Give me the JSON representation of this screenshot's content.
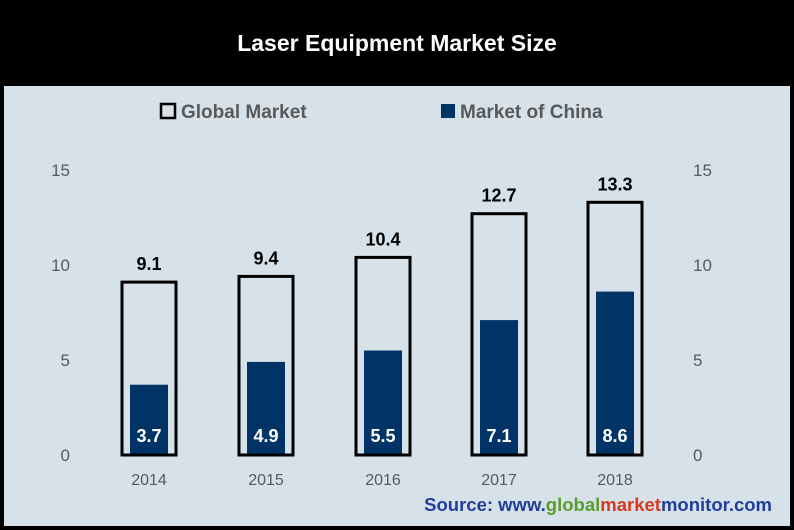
{
  "header": {
    "title": "Laser Equipment Market Size"
  },
  "legend": {
    "global_label": "Global Market",
    "china_label": "Market of China"
  },
  "source": {
    "prefix": "Source: www.",
    "part1": "global",
    "part2": "market",
    "part3": "monitor",
    "suffix": ".com"
  },
  "colors": {
    "background": "#d7e1e9",
    "china_bar": "#003366",
    "global_bar_outline": "#000000",
    "source_blue": "#1f3f99",
    "source_green": "#5a9e2e",
    "source_red": "#d83a1f",
    "axis_text": "#595959"
  },
  "chart_data": {
    "type": "bar",
    "title": "Laser Equipment Market Size",
    "categories": [
      "2014",
      "2015",
      "2016",
      "2017",
      "2018"
    ],
    "series": [
      {
        "name": "Global Market",
        "values": [
          9.1,
          9.4,
          10.4,
          12.7,
          13.3
        ]
      },
      {
        "name": "Market of China",
        "values": [
          3.7,
          4.9,
          5.5,
          7.1,
          8.6
        ]
      }
    ],
    "ylim": [
      0,
      15
    ],
    "yticks": [
      "0",
      "5",
      "10",
      "15"
    ],
    "secondary_yticks": [
      "0",
      "5",
      "10",
      "15"
    ],
    "xlabel": "",
    "ylabel": "",
    "legend_position": "top",
    "grid": false
  }
}
